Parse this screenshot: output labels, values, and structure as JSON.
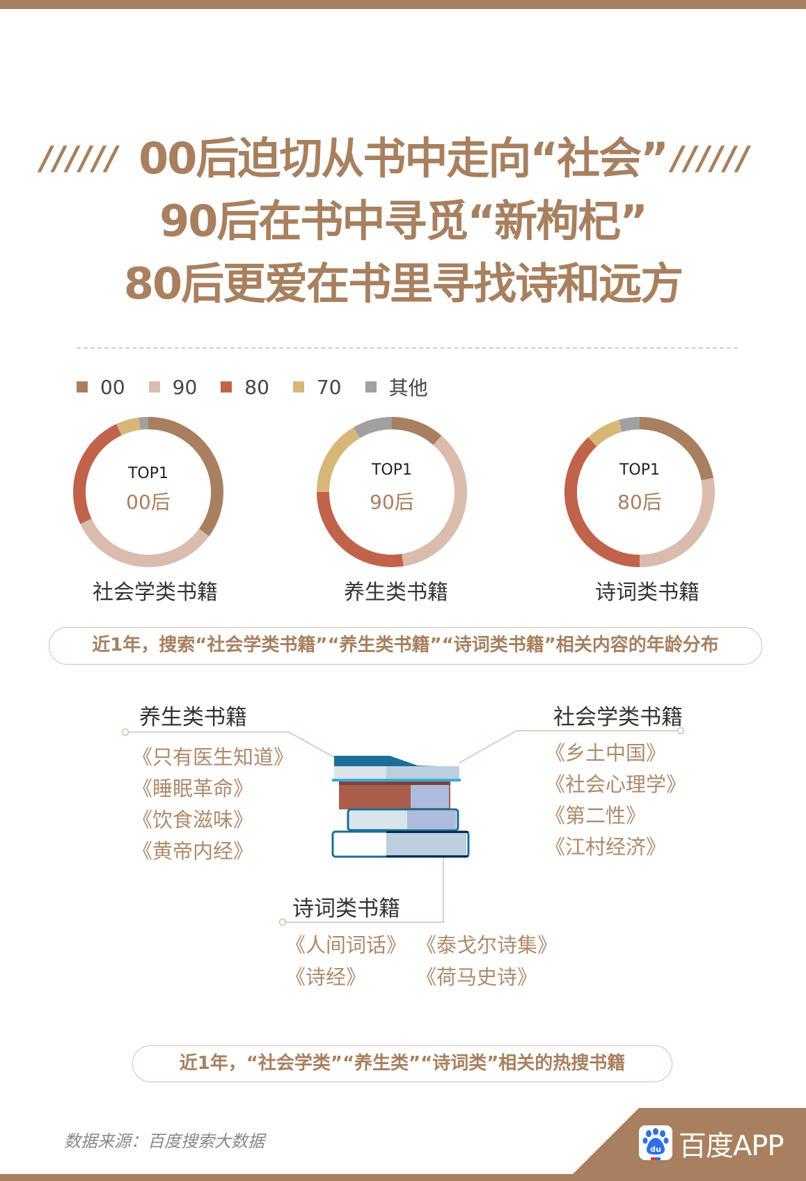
{
  "title": {
    "line1": "00后迫切从书中走向“社会”",
    "line2": "90后在书中寻觅“新枸杞”",
    "line3": "80后更爱在书里寻找诗和远方",
    "decor": "//////"
  },
  "colors": {
    "brand": "#a8805f",
    "00": "#a8805f",
    "90": "#d9bcae",
    "80": "#c0634a",
    "70": "#d6b777",
    "other": "#a0a0a0"
  },
  "chart_data": {
    "type": "pie",
    "legend": {
      "position": "top-left",
      "entries": [
        "00",
        "90",
        "80",
        "70",
        "其他"
      ]
    },
    "series_colors": [
      "#a8805f",
      "#d9bcae",
      "#c0634a",
      "#d6b777",
      "#a0a0a0"
    ],
    "charts": [
      {
        "category": "社会学类书籍",
        "top1_label": "TOP1",
        "top1_value": "00后",
        "values": [
          35,
          33,
          25,
          5,
          2
        ]
      },
      {
        "category": "养生类书籍",
        "top1_label": "TOP1",
        "top1_value": "90后",
        "values": [
          11.5,
          36,
          27.5,
          16.5,
          8.5
        ]
      },
      {
        "category": "诗词类书籍",
        "top1_label": "TOP1",
        "top1_value": "80后",
        "values": [
          22,
          28,
          38,
          7.5,
          4.5
        ]
      }
    ],
    "caption": "近1年，搜索“社会学类书籍”“养生类书籍”“诗词类书籍”相关内容的年龄分布"
  },
  "books": {
    "health": {
      "label": "养生类书籍",
      "items": [
        "《只有医生知道》",
        "《睡眠革命》",
        "《饮食滋味》",
        "《黄帝内经》"
      ]
    },
    "sociology": {
      "label": "社会学类书籍",
      "items": [
        "《乡土中国》",
        "《社会心理学》",
        "《第二性》",
        "《江村经济》"
      ]
    },
    "poetry": {
      "label": "诗词类书籍",
      "items": [
        "《人间词话》",
        "《泰戈尔诗集》",
        "《诗经》",
        "《荷马史诗》"
      ]
    },
    "caption": "近1年，“社会学类”“养生类”“诗词类”相关的热搜书籍"
  },
  "footer": {
    "source": "数据来源：百度搜索大数据",
    "brand": "百度APP",
    "logo_text": "du"
  }
}
